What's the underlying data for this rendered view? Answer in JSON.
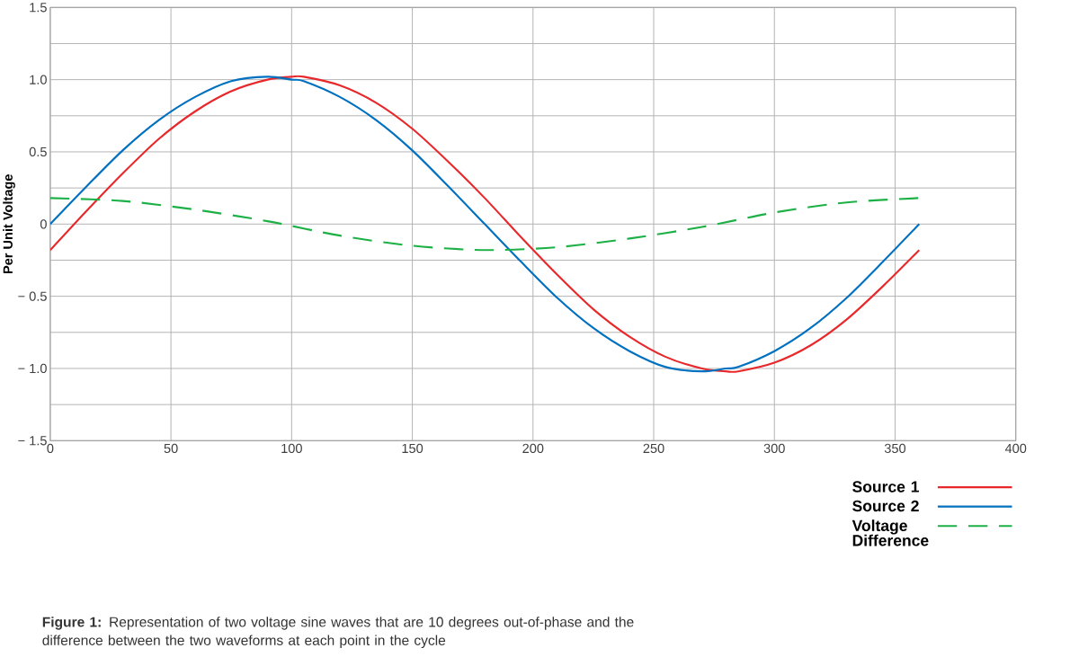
{
  "chart_data": {
    "type": "line",
    "ylabel": "Per Unit Voltage",
    "x": [
      0,
      15,
      30,
      45,
      60,
      75,
      90,
      100,
      105,
      120,
      135,
      150,
      165,
      180,
      195,
      210,
      225,
      240,
      255,
      270,
      280,
      285,
      300,
      315,
      330,
      345,
      360
    ],
    "series": [
      {
        "name": "Source 1",
        "color": "#e8282b",
        "values": [
          -0.18,
          0.09,
          0.35,
          0.59,
          0.78,
          0.92,
          1.0,
          1.02,
          1.02,
          0.96,
          0.84,
          0.66,
          0.43,
          0.18,
          -0.09,
          -0.35,
          -0.59,
          -0.78,
          -0.92,
          -1.0,
          -1.02,
          -1.02,
          -0.96,
          -0.84,
          -0.66,
          -0.43,
          -0.18
        ]
      },
      {
        "name": "Source 2",
        "color": "#0070c0",
        "values": [
          0,
          0.26,
          0.51,
          0.72,
          0.88,
          0.99,
          1.02,
          1.0,
          0.99,
          0.88,
          0.72,
          0.51,
          0.26,
          0,
          -0.26,
          -0.51,
          -0.72,
          -0.88,
          -0.99,
          -1.02,
          -1.0,
          -0.99,
          -0.88,
          -0.72,
          -0.51,
          -0.26,
          0
        ]
      },
      {
        "name": "Voltage Difference",
        "color": "#1db046",
        "line_style": "dashed",
        "x": [
          0,
          30,
          60,
          90,
          120,
          150,
          180,
          210,
          240,
          270,
          300,
          330,
          360
        ],
        "values": [
          0.18,
          0.16,
          0.1,
          0.02,
          -0.08,
          -0.15,
          -0.18,
          -0.16,
          -0.1,
          -0.02,
          0.08,
          0.15,
          0.18
        ]
      }
    ],
    "xlim": [
      0,
      400
    ],
    "xticks": [
      0,
      50,
      100,
      150,
      200,
      250,
      300,
      350,
      400
    ],
    "ylim": [
      -1.5,
      1.5
    ],
    "yticks": [
      {
        "value": -1.5,
        "label": "− 1.5"
      },
      {
        "value": -1.25,
        "label": null
      },
      {
        "value": -1.0,
        "label": "− 1.0"
      },
      {
        "value": -0.75,
        "label": null
      },
      {
        "value": -0.5,
        "label": "− 0.5"
      },
      {
        "value": -0.25,
        "label": null
      },
      0,
      {
        "value": 0.25,
        "label": null
      },
      {
        "value": 0.5,
        "label": "0.5"
      },
      {
        "value": 0.75,
        "label": null
      },
      {
        "value": 1.0,
        "label": "1.0"
      },
      {
        "value": 1.25,
        "label": null
      },
      {
        "value": 1.5,
        "label": "1.5"
      }
    ],
    "grid": true,
    "legend": "bottom right",
    "line_style": "solid",
    "annotations": [
      "**Figure 1:** Representation of two voltage sine waves that are 10 degrees out-of-phase and the difference between the two waveforms at each point in the cycle"
    ]
  }
}
